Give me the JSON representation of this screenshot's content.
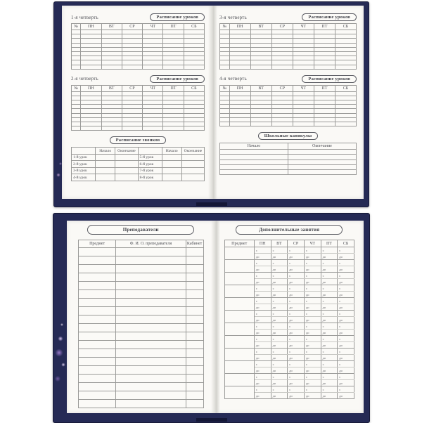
{
  "labels": {
    "schedule_button": "Расписание уроков",
    "bells_title": "Расписание звонков",
    "holidays_title": "Школьные каникулы",
    "teachers_title": "Преподаватели",
    "extra_title": "Дополнительные занятия"
  },
  "day_columns": [
    "№",
    "ПН",
    "ВТ",
    "СР",
    "ЧТ",
    "ПТ",
    "СБ"
  ],
  "quarters": {
    "q1": {
      "label": "1-я четверть",
      "rows": 9
    },
    "q2": {
      "label": "2-я четверть",
      "rows": 9
    },
    "q3": {
      "label": "3-я четверть",
      "rows": 9
    },
    "q4": {
      "label": "4-я четверть",
      "rows": 8
    }
  },
  "bells": {
    "headers": [
      "Начало",
      "Окончание"
    ],
    "lessons_left": [
      "1-й урок",
      "2-й урок",
      "3-й урок",
      "4-й урок"
    ],
    "lessons_right": [
      "5-й урок",
      "6-й урок",
      "7-й урок",
      "8-й урок"
    ]
  },
  "holidays": {
    "headers": [
      "Начало",
      "Окончание"
    ],
    "rows": 5
  },
  "teachers": {
    "columns": [
      "Предмет",
      "Ф. И. О. преподавателя",
      "Кабинет"
    ],
    "rows": 19
  },
  "extra": {
    "columns": [
      "Предмет",
      "ПН",
      "ВТ",
      "СР",
      "ЧТ",
      "ПТ",
      "СБ"
    ],
    "from_label": "с",
    "to_label": "до",
    "rows": 12
  },
  "colors": {
    "cover": "#252a55",
    "page": "#faf9f6",
    "table_line": "#9a9a98",
    "text": "#4b4c52",
    "sparkle": "#c8a8ef"
  }
}
